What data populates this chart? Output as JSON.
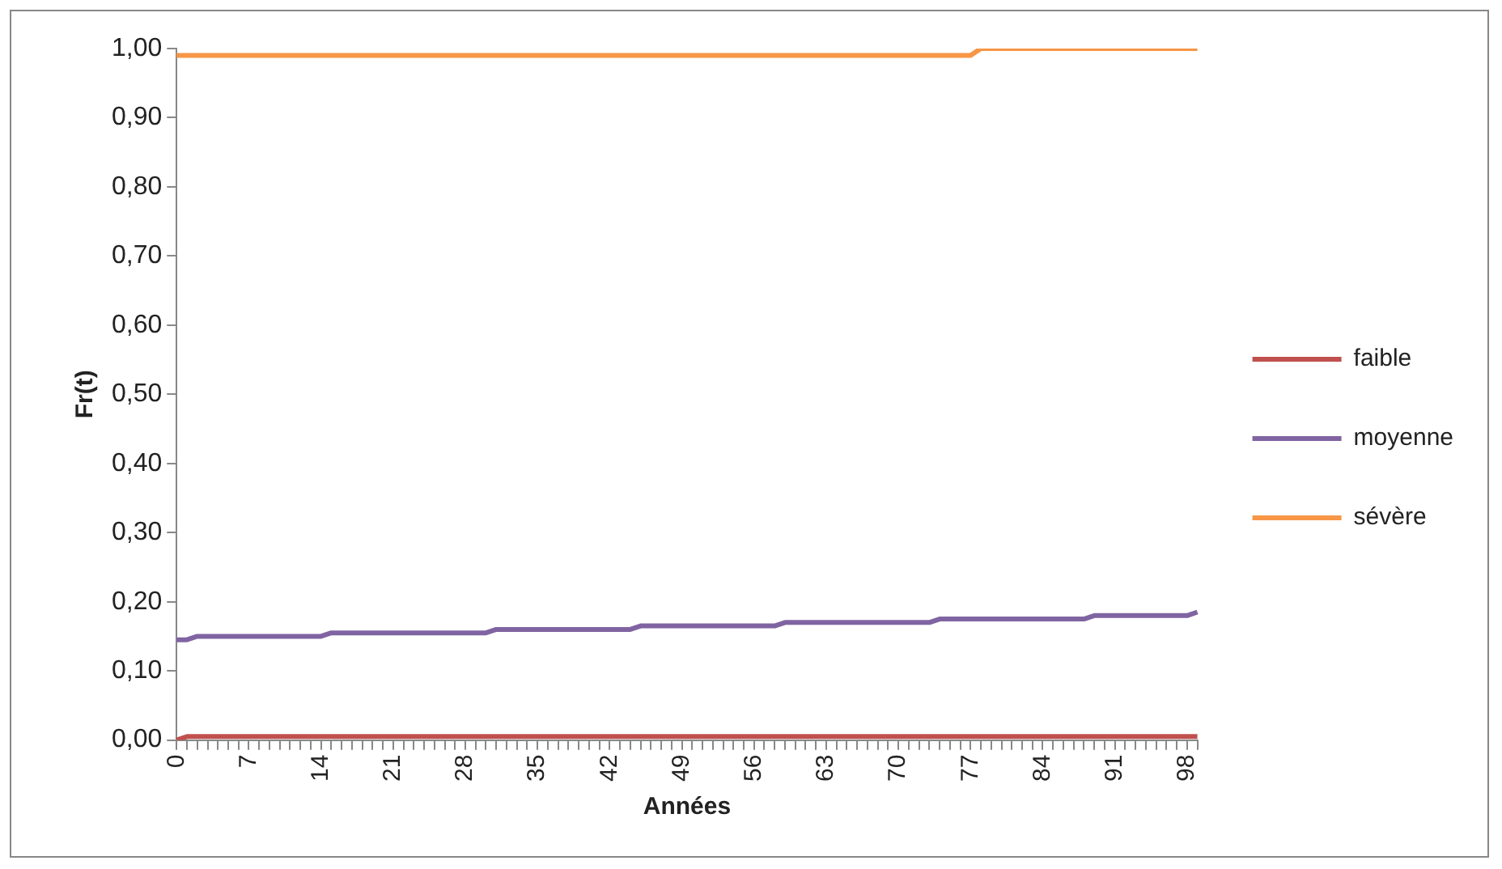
{
  "chart_data": {
    "type": "line",
    "xlabel": "Années",
    "ylabel": "Fr(t)",
    "categories": [
      "0",
      null,
      null,
      null,
      null,
      null,
      null,
      "7",
      null,
      null,
      null,
      null,
      null,
      null,
      "14",
      null,
      null,
      null,
      null,
      null,
      null,
      "21",
      null,
      null,
      null,
      null,
      null,
      null,
      "28",
      null,
      null,
      null,
      null,
      null,
      null,
      "35",
      null,
      null,
      null,
      null,
      null,
      null,
      "42",
      null,
      null,
      null,
      null,
      null,
      null,
      "49",
      null,
      null,
      null,
      null,
      null,
      null,
      "56",
      null,
      null,
      null,
      null,
      null,
      null,
      "63",
      null,
      null,
      null,
      null,
      null,
      null,
      "70",
      null,
      null,
      null,
      null,
      null,
      null,
      "77",
      null,
      null,
      null,
      null,
      null,
      null,
      "84",
      null,
      null,
      null,
      null,
      null,
      null,
      "91",
      null,
      null,
      null,
      null,
      null,
      null,
      "98",
      null
    ],
    "series": [
      {
        "name": "faible",
        "color": "#c0504d",
        "values": [
          0,
          0.005,
          0.005,
          0.005,
          0.005,
          0.005,
          0.005,
          0.005,
          0.005,
          0.005,
          0.005,
          0.005,
          0.005,
          0.005,
          0.005,
          0.005,
          0.005,
          0.005,
          0.005,
          0.005,
          0.005,
          0.005,
          0.005,
          0.005,
          0.005,
          0.005,
          0.005,
          0.005,
          0.005,
          0.005,
          0.005,
          0.005,
          0.005,
          0.005,
          0.005,
          0.005,
          0.005,
          0.005,
          0.005,
          0.005,
          0.005,
          0.005,
          0.005,
          0.005,
          0.005,
          0.005,
          0.005,
          0.005,
          0.005,
          0.005,
          0.005,
          0.005,
          0.005,
          0.005,
          0.005,
          0.005,
          0.005,
          0.005,
          0.005,
          0.005,
          0.005,
          0.005,
          0.005,
          0.005,
          0.005,
          0.005,
          0.005,
          0.005,
          0.005,
          0.005,
          0.005,
          0.005,
          0.005,
          0.005,
          0.005,
          0.005,
          0.005,
          0.005,
          0.005,
          0.005,
          0.005,
          0.005,
          0.005,
          0.005,
          0.005,
          0.005,
          0.005,
          0.005,
          0.005,
          0.005,
          0.005,
          0.005,
          0.005,
          0.005,
          0.005,
          0.005,
          0.005,
          0.005,
          0.005,
          0.005
        ]
      },
      {
        "name": "moyenne",
        "color": "#8064a2",
        "values": [
          0.145,
          0.145,
          0.15,
          0.15,
          0.15,
          0.15,
          0.15,
          0.15,
          0.15,
          0.15,
          0.15,
          0.15,
          0.15,
          0.15,
          0.15,
          0.155,
          0.155,
          0.155,
          0.155,
          0.155,
          0.155,
          0.155,
          0.155,
          0.155,
          0.155,
          0.155,
          0.155,
          0.155,
          0.155,
          0.155,
          0.155,
          0.16,
          0.16,
          0.16,
          0.16,
          0.16,
          0.16,
          0.16,
          0.16,
          0.16,
          0.16,
          0.16,
          0.16,
          0.16,
          0.16,
          0.165,
          0.165,
          0.165,
          0.165,
          0.165,
          0.165,
          0.165,
          0.165,
          0.165,
          0.165,
          0.165,
          0.165,
          0.165,
          0.165,
          0.17,
          0.17,
          0.17,
          0.17,
          0.17,
          0.17,
          0.17,
          0.17,
          0.17,
          0.17,
          0.17,
          0.17,
          0.17,
          0.17,
          0.17,
          0.175,
          0.175,
          0.175,
          0.175,
          0.175,
          0.175,
          0.175,
          0.175,
          0.175,
          0.175,
          0.175,
          0.175,
          0.175,
          0.175,
          0.175,
          0.18,
          0.18,
          0.18,
          0.18,
          0.18,
          0.18,
          0.18,
          0.18,
          0.18,
          0.18,
          0.185
        ]
      },
      {
        "name": "sévère",
        "color": "#f79646",
        "values": [
          0.99,
          0.99,
          0.99,
          0.99,
          0.99,
          0.99,
          0.99,
          0.99,
          0.99,
          0.99,
          0.99,
          0.99,
          0.99,
          0.99,
          0.99,
          0.99,
          0.99,
          0.99,
          0.99,
          0.99,
          0.99,
          0.99,
          0.99,
          0.99,
          0.99,
          0.99,
          0.99,
          0.99,
          0.99,
          0.99,
          0.99,
          0.99,
          0.99,
          0.99,
          0.99,
          0.99,
          0.99,
          0.99,
          0.99,
          0.99,
          0.99,
          0.99,
          0.99,
          0.99,
          0.99,
          0.99,
          0.99,
          0.99,
          0.99,
          0.99,
          0.99,
          0.99,
          0.99,
          0.99,
          0.99,
          0.99,
          0.99,
          0.99,
          0.99,
          0.99,
          0.99,
          0.99,
          0.99,
          0.99,
          0.99,
          0.99,
          0.99,
          0.99,
          0.99,
          0.99,
          0.99,
          0.99,
          0.99,
          0.99,
          0.99,
          0.99,
          0.99,
          0.99,
          1,
          1,
          1,
          1,
          1,
          1,
          1,
          1,
          1,
          1,
          1,
          1,
          1,
          1,
          1,
          1,
          1,
          1,
          1,
          1,
          1,
          1
        ]
      }
    ],
    "ylim": [
      0,
      1
    ],
    "yticks": [
      {
        "value": 0,
        "label": "0,00"
      },
      {
        "value": 0.1,
        "label": "0,10"
      },
      {
        "value": 0.2,
        "label": "0,20"
      },
      {
        "value": 0.3,
        "label": "0,30"
      },
      {
        "value": 0.4,
        "label": "0,40"
      },
      {
        "value": 0.5,
        "label": "0,50"
      },
      {
        "value": 0.6,
        "label": "0,60"
      },
      {
        "value": 0.7,
        "label": "0,70"
      },
      {
        "value": 0.8,
        "label": "0,80"
      },
      {
        "value": 0.9,
        "label": "0,90"
      },
      {
        "value": 1,
        "label": "1,00"
      }
    ],
    "grid": false,
    "legend": "right",
    "marker": "none",
    "line_style": "solid"
  }
}
